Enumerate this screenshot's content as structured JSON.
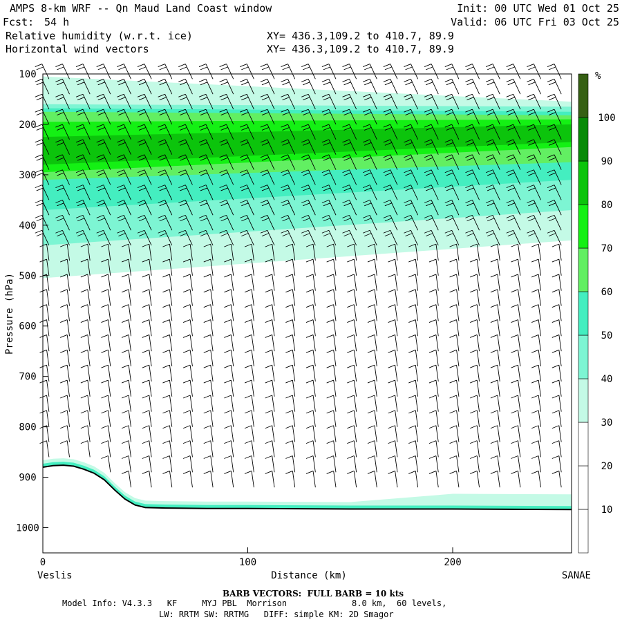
{
  "header": {
    "title_left": "AMPS 8-km WRF -- Qn Maud Land Coast window",
    "fcst_label": "Fcst:",
    "fcst_value": "54 h",
    "field1": "Relative humidity (w.r.t. ice)",
    "field2": "Horizontal wind vectors",
    "init": "Init: 00 UTC Wed 01 Oct 25",
    "valid": "Valid: 06 UTC Fri 03 Oct 25",
    "xy1": "XY= 436.3,109.2 to 410.7, 89.9",
    "xy2": "XY= 436.3,109.2 to 410.7, 89.9"
  },
  "footer": {
    "barb_note": "BARB VECTORS:  FULL BARB = 10 kts",
    "model_info": "Model Info: V4.3.3   KF     MYJ PBL  Morrison             8.0 km,  60 levels,",
    "model_info2": "LW: RRTM SW: RRTMG   DIFF: simple KM: 2D Smagor"
  },
  "chart_data": {
    "type": "heatmap",
    "xlabel": "Distance (km)",
    "ylabel": "Pressure (hPa)",
    "xlim": [
      0,
      258
    ],
    "ylim": [
      1050,
      100
    ],
    "x_ticks": [
      0,
      100,
      200
    ],
    "y_ticks": [
      100,
      200,
      300,
      400,
      500,
      600,
      700,
      800,
      900,
      1000
    ],
    "x_left_endpoint": "Veslis",
    "x_right_endpoint": "SANAE",
    "colorbar": {
      "unit": "%",
      "levels": [
        10,
        20,
        30,
        40,
        50,
        60,
        70,
        80,
        90,
        100
      ],
      "colors": [
        "#ffffff",
        "#ffffff",
        "#ffffff",
        "#c4fae6",
        "#7df5d3",
        "#44eec0",
        "#62ef62",
        "#14f014",
        "#0cc40c",
        "#078a07",
        "#355f13"
      ]
    },
    "rh_layers_note": "RH bands (approximate, in hPa at x=0 and x=258)",
    "rh_layers": [
      {
        "level": 30,
        "top": [
          105,
          155
        ],
        "bottom": [
          505,
          430
        ],
        "color": "#c4fae6"
      },
      {
        "level": 40,
        "top": [
          160,
          165
        ],
        "bottom": [
          440,
          370
        ],
        "color": "#7df5d3"
      },
      {
        "level": 50,
        "top": [
          168,
          175
        ],
        "bottom": [
          370,
          310
        ],
        "color": "#44eec0"
      },
      {
        "level": 60,
        "top": [
          175,
          182
        ],
        "bottom": [
          310,
          275
        ],
        "color": "#62ef62"
      },
      {
        "level": 70,
        "top": [
          195,
          190
        ],
        "bottom": [
          295,
          245
        ],
        "color": "#14f014"
      },
      {
        "level": 80,
        "top": [
          225,
          200
        ],
        "bottom": [
          280,
          235
        ],
        "color": "#0cc40c"
      }
    ],
    "terrain_note": "terrain surface pressure (hPa) along transect",
    "terrain_x": [
      0,
      5,
      10,
      15,
      20,
      25,
      30,
      35,
      40,
      45,
      50,
      60,
      80,
      100,
      150,
      200,
      258
    ],
    "terrain_p": [
      880,
      877,
      876,
      878,
      884,
      892,
      905,
      925,
      943,
      955,
      960,
      961,
      962,
      962,
      963,
      963,
      964
    ]
  }
}
